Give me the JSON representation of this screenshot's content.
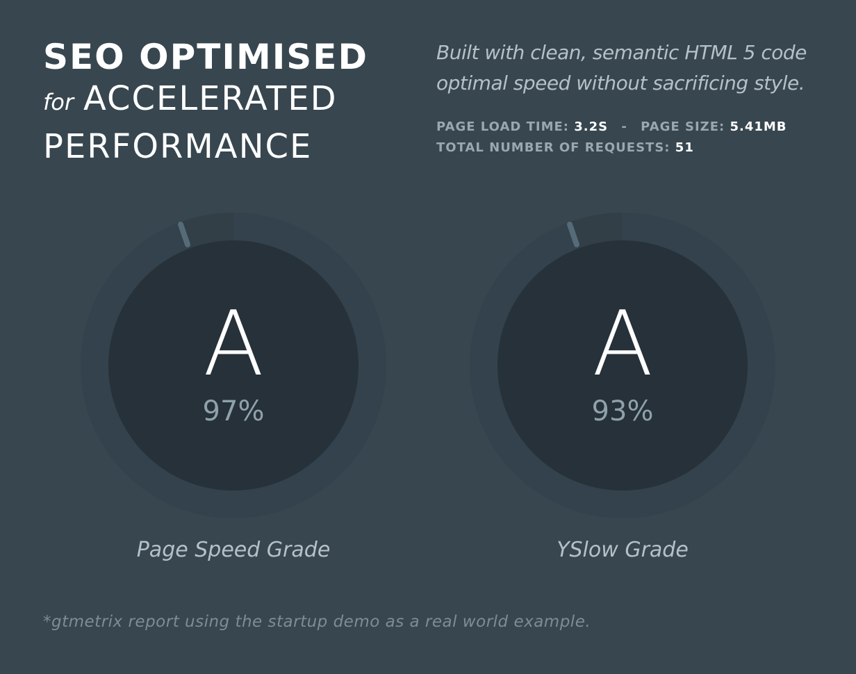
{
  "heading": {
    "line1": "SEO OPTIMISED",
    "for_word": "for",
    "line2": "ACCELERATED",
    "line3": "PERFORMANCE"
  },
  "description": {
    "text_line1": "Built with clean, semantic HTML 5 code",
    "text_line2": "optimal speed without sacrificing style."
  },
  "stats": {
    "load_time_label": "PAGE LOAD TIME:",
    "load_time_value": "3.2S",
    "separator": "-",
    "page_size_label": "PAGE SIZE:",
    "page_size_value": "5.41MB",
    "requests_label": "TOTAL NUMBER OF REQUESTS:",
    "requests_value": "51"
  },
  "gauges": [
    {
      "grade": "A",
      "percent": "97%",
      "percent_value": 97,
      "label": "Page Speed Grade"
    },
    {
      "grade": "A",
      "percent": "93%",
      "percent_value": 93,
      "label": "YSlow Grade"
    }
  ],
  "footnote": "*gtmetrix report using the startup demo as a real world example.",
  "colors": {
    "background": "#37464f",
    "ring_track": "#323f47",
    "inner_circle": "#263139",
    "tick": "#556b78",
    "primary_text": "#ffffff",
    "secondary_text": "#b6c1c7",
    "muted_text": "#8fa1ab"
  }
}
